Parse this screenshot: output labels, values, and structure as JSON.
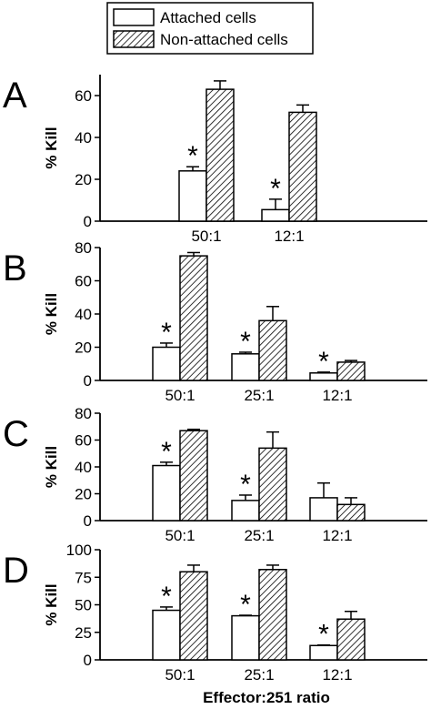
{
  "legend": {
    "entries": [
      {
        "label": "Attached cells",
        "pattern": "open"
      },
      {
        "label": "Non-attached cells",
        "pattern": "hatched"
      }
    ]
  },
  "x_title": "Effector:251 ratio",
  "chart_data": [
    {
      "type": "bar",
      "panel": "A",
      "ylabel": "% Kill",
      "ylim": [
        0,
        70
      ],
      "yticks": [
        0,
        20,
        40,
        60
      ],
      "categories": [
        "50:1",
        "12:1"
      ],
      "series": [
        {
          "name": "Attached cells",
          "values": [
            24,
            5.5
          ],
          "errors": [
            2,
            5
          ],
          "significant": [
            true,
            true
          ]
        },
        {
          "name": "Non-attached cells",
          "values": [
            63,
            52
          ],
          "errors": [
            4,
            3.5
          ],
          "significant": [
            false,
            false
          ]
        }
      ]
    },
    {
      "type": "bar",
      "panel": "B",
      "ylabel": "% Kill",
      "ylim": [
        0,
        80
      ],
      "yticks": [
        0,
        20,
        40,
        60,
        80
      ],
      "categories": [
        "50:1",
        "25:1",
        "12:1"
      ],
      "series": [
        {
          "name": "Attached cells",
          "values": [
            20,
            16,
            4.5
          ],
          "errors": [
            2.5,
            1,
            0.5
          ],
          "significant": [
            true,
            true,
            true
          ]
        },
        {
          "name": "Non-attached cells",
          "values": [
            75,
            36,
            11
          ],
          "errors": [
            2,
            8.5,
            1
          ],
          "significant": [
            false,
            false,
            false
          ]
        }
      ]
    },
    {
      "type": "bar",
      "panel": "C",
      "ylabel": "% Kill",
      "ylim": [
        0,
        80
      ],
      "yticks": [
        0,
        20,
        40,
        60,
        80
      ],
      "categories": [
        "50:1",
        "25:1",
        "12:1"
      ],
      "series": [
        {
          "name": "Attached cells",
          "values": [
            41,
            15,
            17
          ],
          "errors": [
            2.5,
            4,
            11
          ],
          "significant": [
            true,
            true,
            false
          ]
        },
        {
          "name": "Non-attached cells",
          "values": [
            67,
            54,
            12
          ],
          "errors": [
            1,
            12,
            5
          ],
          "significant": [
            false,
            false,
            false
          ]
        }
      ]
    },
    {
      "type": "bar",
      "panel": "D",
      "ylabel": "% Kill",
      "ylim": [
        0,
        100
      ],
      "yticks": [
        0,
        25,
        50,
        75,
        100
      ],
      "categories": [
        "50:1",
        "25:1",
        "12:1"
      ],
      "series": [
        {
          "name": "Attached cells",
          "values": [
            45,
            40,
            13
          ],
          "errors": [
            3,
            0.5,
            0.5
          ],
          "significant": [
            true,
            true,
            true
          ]
        },
        {
          "name": "Non-attached cells",
          "values": [
            80,
            82,
            37
          ],
          "errors": [
            6,
            4,
            7
          ],
          "significant": [
            false,
            false,
            false
          ]
        }
      ]
    }
  ]
}
